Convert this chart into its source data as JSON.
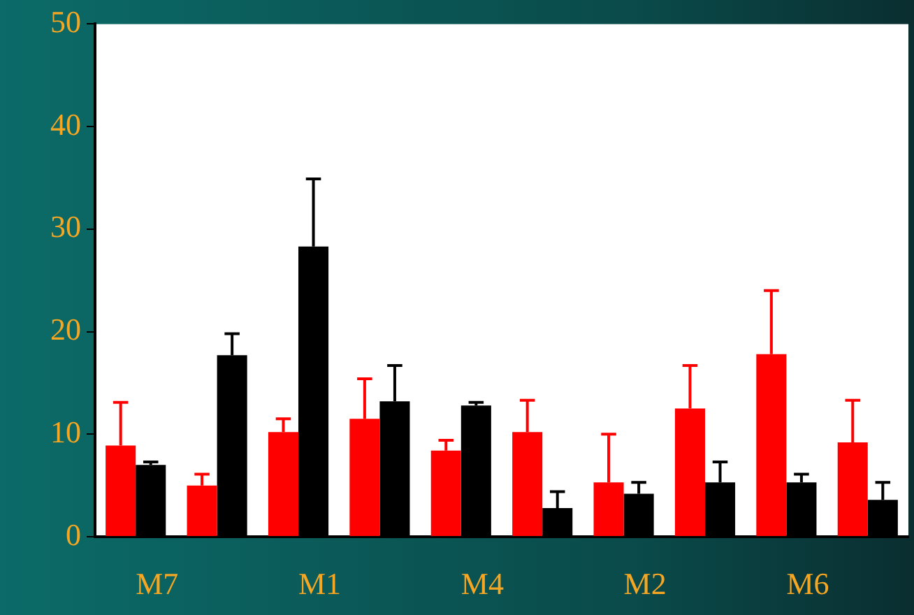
{
  "chart_data": {
    "type": "bar",
    "categories": [
      "M7",
      null,
      "M1",
      null,
      "M4",
      null,
      "M2",
      null,
      "M6",
      null
    ],
    "series": [
      {
        "color": "#ff0000",
        "values": [
          8.9,
          5.0,
          10.2,
          11.5,
          8.4,
          10.2,
          5.3,
          12.5,
          17.8,
          9.2
        ],
        "errors": [
          [
            8.9,
            13.1
          ],
          [
            5.0,
            6.1
          ],
          [
            10.2,
            11.5
          ],
          [
            11.5,
            15.4
          ],
          [
            8.4,
            9.4
          ],
          [
            10.2,
            13.3
          ],
          [
            5.3,
            10.0
          ],
          [
            12.5,
            16.7
          ],
          [
            17.8,
            24.0
          ],
          [
            9.2,
            13.3
          ]
        ]
      },
      {
        "color": "#000000",
        "values": [
          7.0,
          17.7,
          28.3,
          13.2,
          12.8,
          2.8,
          4.2,
          5.3,
          5.3,
          3.6
        ],
        "errors": [
          [
            7.0,
            7.3
          ],
          [
            17.7,
            19.8
          ],
          [
            28.3,
            34.9
          ],
          [
            13.2,
            16.7
          ],
          [
            12.8,
            13.1
          ],
          [
            2.8,
            4.4
          ],
          [
            4.2,
            5.3
          ],
          [
            5.3,
            7.3
          ],
          [
            5.3,
            6.1
          ],
          [
            3.6,
            5.3
          ]
        ]
      }
    ],
    "ylim": [
      0,
      50
    ],
    "yticks": [
      0,
      10,
      20,
      30,
      40,
      50
    ],
    "grid": false,
    "legend": false
  }
}
